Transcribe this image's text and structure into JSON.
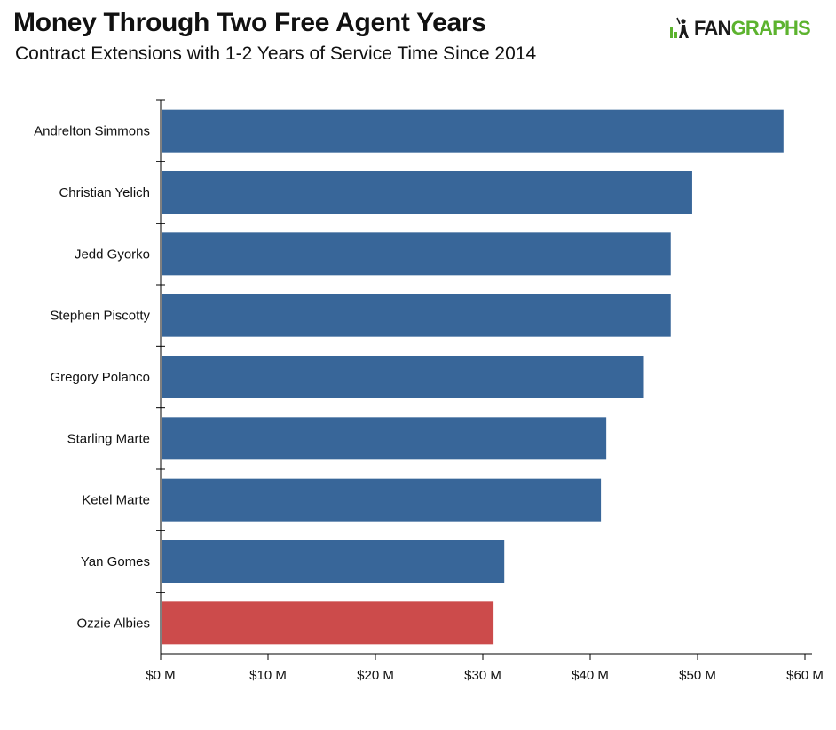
{
  "header": {
    "title": "Money Through Two Free Agent Years",
    "subtitle": "Contract Extensions with 1-2 Years of Service Time Since 2014"
  },
  "logo": {
    "text_dark": "FAN",
    "text_green": "GRAPHS",
    "icon": "batter-icon"
  },
  "colors": {
    "bar_default": "#386699",
    "bar_highlight": "#cc4b4b",
    "axis": "#000000",
    "logo_green": "#5cb32e"
  },
  "chart_data": {
    "type": "bar",
    "orientation": "horizontal",
    "title": "Money Through Two Free Agent Years",
    "subtitle": "Contract Extensions with 1-2 Years of Service Time Since 2014",
    "xlabel": "",
    "ylabel": "",
    "xlim": [
      0,
      60
    ],
    "x_ticks": [
      0,
      10,
      20,
      30,
      40,
      50,
      60
    ],
    "x_tick_labels": [
      "$0 M",
      "$10 M",
      "$20 M",
      "$30 M",
      "$40 M",
      "$50 M",
      "$60 M"
    ],
    "grid": false,
    "legend": "none",
    "categories": [
      "Andrelton Simmons",
      "Christian Yelich",
      "Jedd Gyorko",
      "Stephen Piscotty",
      "Gregory Polanco",
      "Starling Marte",
      "Ketel Marte",
      "Yan Gomes",
      "Ozzie Albies"
    ],
    "values": [
      58,
      49.5,
      47.5,
      47.5,
      45,
      41.5,
      41,
      32,
      31
    ],
    "highlight": [
      "Ozzie Albies"
    ]
  }
}
